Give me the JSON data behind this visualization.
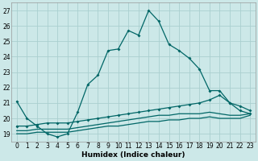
{
  "xlabel": "Humidex (Indice chaleur)",
  "bg_color": "#cce8e8",
  "grid_color": "#aacfcf",
  "line_color": "#006666",
  "xlim": [
    -0.5,
    23.5
  ],
  "ylim": [
    18.5,
    27.5
  ],
  "yticks": [
    19,
    20,
    21,
    22,
    23,
    24,
    25,
    26,
    27
  ],
  "xticks": [
    0,
    1,
    2,
    3,
    4,
    5,
    6,
    7,
    8,
    9,
    10,
    11,
    12,
    13,
    14,
    15,
    16,
    17,
    18,
    19,
    20,
    21,
    22,
    23
  ],
  "line1_x": [
    0,
    1,
    2,
    3,
    4,
    5,
    6,
    7,
    8,
    9,
    10,
    11,
    12,
    13,
    14,
    15,
    16,
    17,
    18,
    19,
    20,
    21,
    22,
    23
  ],
  "line1_y": [
    21.1,
    20.0,
    19.5,
    19.0,
    18.8,
    19.0,
    20.4,
    22.2,
    22.8,
    24.4,
    24.5,
    25.7,
    25.4,
    27.0,
    26.3,
    24.8,
    24.4,
    23.9,
    23.2,
    21.8,
    21.8,
    21.0,
    20.5,
    20.3
  ],
  "line2_x": [
    0,
    1,
    2,
    3,
    4,
    5,
    6,
    7,
    8,
    9,
    10,
    11,
    12,
    13,
    14,
    15,
    16,
    17,
    18,
    19,
    20,
    21,
    22,
    23
  ],
  "line2_y": [
    19.5,
    19.5,
    19.6,
    19.7,
    19.7,
    19.7,
    19.8,
    19.9,
    20.0,
    20.1,
    20.2,
    20.3,
    20.4,
    20.5,
    20.6,
    20.7,
    20.8,
    20.9,
    21.0,
    21.2,
    21.5,
    21.0,
    20.8,
    20.5
  ],
  "line3_x": [
    0,
    1,
    2,
    3,
    4,
    5,
    6,
    7,
    8,
    9,
    10,
    11,
    12,
    13,
    14,
    15,
    16,
    17,
    18,
    19,
    20,
    21,
    22,
    23
  ],
  "line3_y": [
    19.2,
    19.2,
    19.3,
    19.3,
    19.3,
    19.3,
    19.4,
    19.5,
    19.6,
    19.7,
    19.8,
    19.9,
    20.0,
    20.1,
    20.2,
    20.2,
    20.3,
    20.3,
    20.3,
    20.4,
    20.3,
    20.2,
    20.2,
    20.3
  ],
  "line4_x": [
    0,
    1,
    2,
    3,
    4,
    5,
    6,
    7,
    8,
    9,
    10,
    11,
    12,
    13,
    14,
    15,
    16,
    17,
    18,
    19,
    20,
    21,
    22,
    23
  ],
  "line4_y": [
    19.0,
    19.0,
    19.1,
    19.1,
    19.1,
    19.1,
    19.2,
    19.3,
    19.4,
    19.5,
    19.5,
    19.6,
    19.7,
    19.8,
    19.8,
    19.9,
    19.9,
    20.0,
    20.0,
    20.1,
    20.0,
    20.0,
    20.0,
    20.2
  ]
}
